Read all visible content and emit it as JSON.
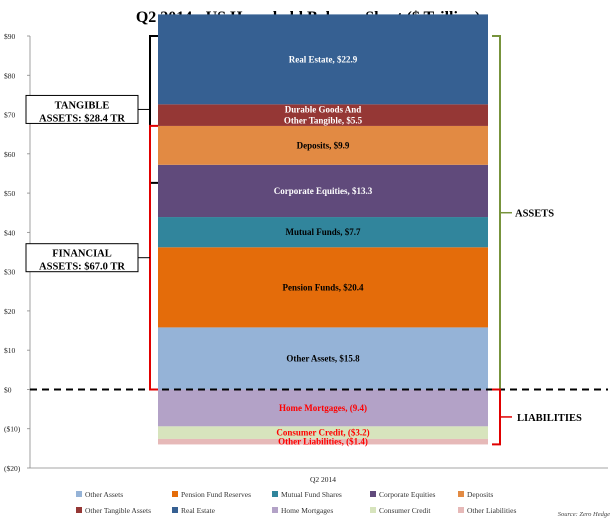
{
  "chart_data": {
    "type": "bar",
    "title": "Q2 2014 - US Household Balance Sheet ($ Trillion)",
    "categories": [
      "Q2 2014"
    ],
    "ylim": [
      -20,
      90
    ],
    "y_ticks": [
      "$90",
      "$80",
      "$70",
      "$60",
      "$50",
      "$40",
      "$30",
      "$20",
      "$10",
      "$0",
      "($10)",
      "($20)"
    ],
    "y_tick_values": [
      90,
      80,
      70,
      60,
      50,
      40,
      30,
      20,
      10,
      0,
      -10,
      -20
    ],
    "stacked": true,
    "series": [
      {
        "name": "Other Assets",
        "value": 15.8,
        "color": "#95b3d7",
        "label": "Other Assets, $15.8",
        "label_color": "#000000"
      },
      {
        "name": "Pension Fund Reserves",
        "value": 20.4,
        "color": "#e46c0a",
        "label": "Pension Funds, $20.4",
        "label_color": "#000000"
      },
      {
        "name": "Mutual Fund Shares",
        "value": 7.7,
        "color": "#31859c",
        "label": "Mutual Funds, $7.7",
        "label_color": "#000000"
      },
      {
        "name": "Corporate Equities",
        "value": 13.3,
        "color": "#604a7b",
        "label": "Corporate Equities, $13.3",
        "label_color": "#ffffff"
      },
      {
        "name": "Deposits",
        "value": 9.9,
        "color": "#e28a43",
        "label": "Deposits, $9.9",
        "label_color": "#000000"
      },
      {
        "name": "Other Tangible Assets",
        "value": 5.5,
        "color": "#953735",
        "label": "Durable Goods And|Other Tangible, $5.5",
        "label_color": "#ffffff"
      },
      {
        "name": "Real Estate",
        "value": 22.9,
        "color": "#366092",
        "label": "Real Estate, $22.9",
        "label_color": "#ffffff"
      },
      {
        "name": "Home Mortgages",
        "value": -9.4,
        "color": "#b3a2c7",
        "label": "Home Mortgages, (9.4)",
        "label_color": "#ff0000"
      },
      {
        "name": "Consumer Credit",
        "value": -3.2,
        "color": "#d7e4bd",
        "label": "Consumer Credit, ($3.2)",
        "label_color": "#ff0000"
      },
      {
        "name": "Other Liabilities",
        "value": -1.4,
        "color": "#e6b9b8",
        "label": "Other Liabilities, ($1.4)",
        "label_color": "#ff0000"
      }
    ],
    "annotations": {
      "tangible": {
        "line1": "TANGIBLE",
        "line2": "ASSETS:  $28.4 TR",
        "range": [
          52.6,
          90
        ]
      },
      "financial": {
        "line1": "FINANCIAL",
        "line2": "ASSETS:  $67.0 TR",
        "range": [
          0,
          67.1
        ]
      },
      "assets": {
        "text": "ASSETS",
        "range": [
          0,
          90
        ]
      },
      "liabilities": {
        "text": "LIABILITIES",
        "range": [
          -14,
          0
        ]
      }
    },
    "source": "Source: Zero Hedge",
    "legend_position": "bottom"
  }
}
